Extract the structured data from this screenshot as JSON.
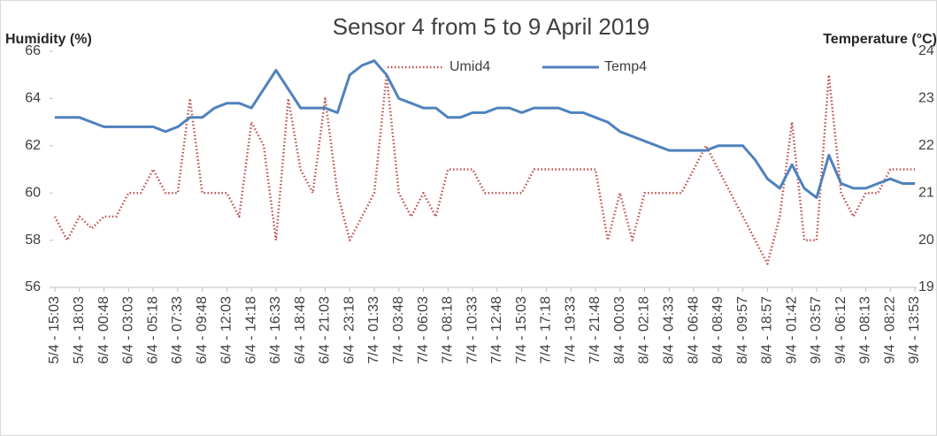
{
  "chart_data": {
    "type": "line",
    "title": "Sensor 4 from 5 to 9 April 2019",
    "y_label": "Humidity (%)",
    "y2_label": "Temperature (°C)",
    "categories": [
      "5/4 - 15:03",
      null,
      "5/4 - 18:03",
      null,
      "6/4 - 00:48",
      null,
      "6/4 - 03:03",
      null,
      "6/4 - 05:18",
      null,
      "6/4 - 07:33",
      null,
      "6/4 - 09:48",
      null,
      "6/4 - 12:03",
      null,
      "6/4 - 14:18",
      null,
      "6/4 - 16:33",
      null,
      "6/4 - 18:48",
      null,
      "6/4 - 21:03",
      null,
      "6/4 - 23:18",
      null,
      "7/4 - 01:33",
      null,
      "7/4 - 03:48",
      null,
      "7/4 - 06:03",
      null,
      "7/4 - 08:18",
      null,
      "7/4 - 10:33",
      null,
      "7/4 - 12:48",
      null,
      "7/4 - 15:03",
      null,
      "7/4 - 17:18",
      null,
      "7/4 - 19:33",
      null,
      "7/4 - 21:48",
      null,
      "8/4 - 00:03",
      null,
      "8/4 - 02:18",
      null,
      "8/4 - 04:33",
      null,
      "8/4 - 06:48",
      null,
      "8/4 - 08:49",
      null,
      "8/4 - 09:57",
      null,
      "8/4 - 18:57",
      null,
      "9/4 - 01:42",
      null,
      "9/4 - 03:57",
      null,
      "9/4 - 06:12",
      null,
      "9/4 - 08:13",
      null,
      "9/4 - 08:22",
      null,
      "9/4 - 13:53"
    ],
    "series": [
      {
        "name": "Umid4",
        "color": "#c0504d",
        "dash": "dotted",
        "values": [
          59,
          58,
          59,
          58.5,
          59,
          59,
          60,
          60,
          61,
          60,
          60,
          64,
          60,
          60,
          60,
          59,
          63,
          62,
          58,
          64,
          61,
          60,
          64,
          60,
          58,
          59,
          60,
          65,
          60,
          59,
          60,
          59,
          61,
          61,
          61,
          60,
          60,
          60,
          60,
          61,
          61,
          61,
          61,
          61,
          61,
          58,
          60,
          58,
          60,
          60,
          60,
          60,
          61,
          62,
          61,
          60,
          59,
          58,
          57,
          59,
          63,
          58,
          58,
          65,
          60,
          59,
          60,
          60,
          61,
          61,
          61
        ]
      },
      {
        "name": "Temp4",
        "color": "#4f81bd",
        "dash": "solid",
        "axis": "y2",
        "values": [
          22.6,
          22.6,
          22.6,
          22.5,
          22.4,
          22.4,
          22.4,
          22.4,
          22.4,
          22.3,
          22.4,
          22.6,
          22.6,
          22.8,
          22.9,
          22.9,
          22.8,
          23.2,
          23.6,
          23.2,
          22.8,
          22.8,
          22.8,
          22.7,
          23.5,
          23.7,
          23.8,
          23.5,
          23.0,
          22.9,
          22.8,
          22.8,
          22.6,
          22.6,
          22.7,
          22.7,
          22.8,
          22.8,
          22.7,
          22.8,
          22.8,
          22.8,
          22.7,
          22.7,
          22.6,
          22.5,
          22.3,
          22.2,
          22.1,
          22.0,
          21.9,
          21.9,
          21.9,
          21.9,
          22.0,
          22.0,
          22.0,
          21.7,
          21.3,
          21.1,
          21.6,
          21.1,
          20.9,
          21.8,
          21.2,
          21.1,
          21.1,
          21.2,
          21.3,
          21.2,
          21.2
        ]
      }
    ],
    "ylim": [
      56,
      66
    ],
    "yticks": [
      56,
      58,
      60,
      62,
      64,
      66
    ],
    "y2lim": [
      19,
      24
    ],
    "y2ticks": [
      19,
      20,
      21,
      22,
      23,
      24
    ],
    "legend": "top"
  }
}
